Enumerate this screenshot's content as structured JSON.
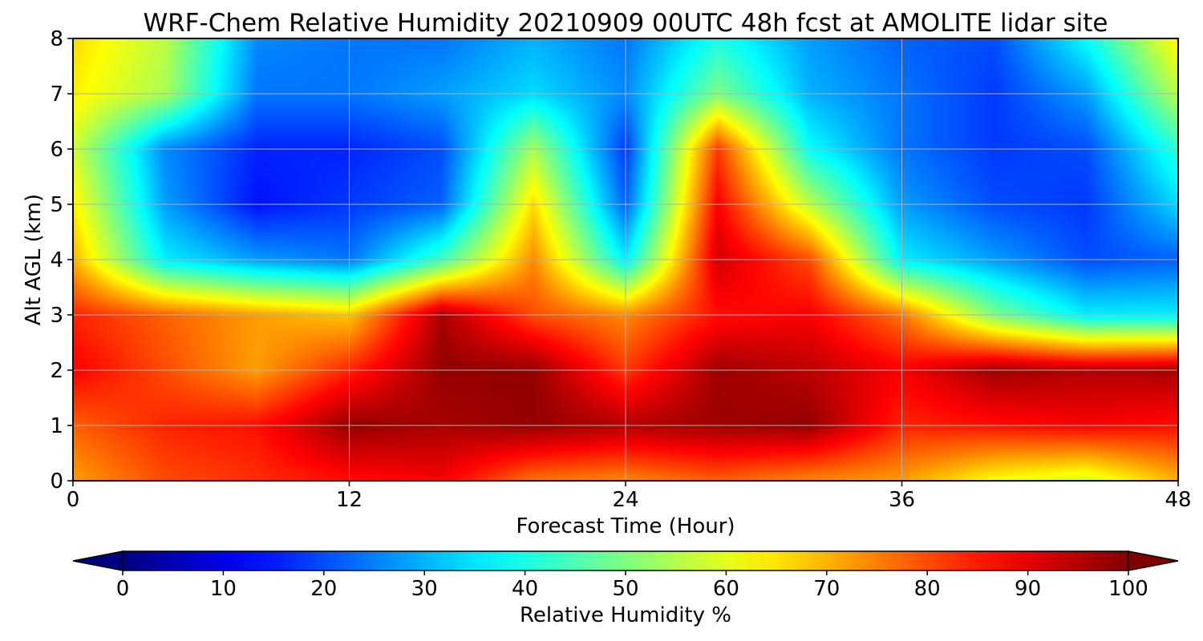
{
  "chart_data": {
    "type": "heatmap",
    "title": "WRF-Chem Relative Humidity 20210909 00UTC 48h fcst at AMOLITE lidar site",
    "xlabel": "Forecast Time (Hour)",
    "ylabel": "Alt AGL (km)",
    "xlim": [
      0,
      48
    ],
    "ylim": [
      0,
      8
    ],
    "x_ticks": [
      0,
      12,
      24,
      36,
      48
    ],
    "y_ticks": [
      0,
      1,
      2,
      3,
      4,
      5,
      6,
      7,
      8
    ],
    "grid": true,
    "x": [
      0,
      4,
      8,
      12,
      16,
      20,
      24,
      28,
      32,
      36,
      40,
      44,
      48
    ],
    "y": [
      0,
      1,
      2,
      3,
      4,
      5,
      6,
      7,
      8
    ],
    "z": [
      [
        72,
        80,
        83,
        86,
        88,
        76,
        74,
        78,
        74,
        72,
        62,
        58,
        70
      ],
      [
        78,
        84,
        86,
        98,
        96,
        98,
        95,
        97,
        98,
        84,
        86,
        88,
        86
      ],
      [
        88,
        80,
        72,
        84,
        98,
        98,
        82,
        97,
        94,
        88,
        97,
        95,
        96
      ],
      [
        84,
        78,
        72,
        68,
        96,
        80,
        74,
        86,
        88,
        76,
        50,
        36,
        36
      ],
      [
        70,
        36,
        28,
        24,
        44,
        74,
        36,
        92,
        80,
        36,
        28,
        20,
        22
      ],
      [
        64,
        28,
        14,
        18,
        22,
        66,
        22,
        88,
        56,
        28,
        20,
        18,
        34
      ],
      [
        58,
        26,
        16,
        16,
        20,
        54,
        18,
        82,
        38,
        24,
        18,
        20,
        42
      ],
      [
        64,
        54,
        24,
        24,
        28,
        34,
        26,
        50,
        30,
        24,
        18,
        28,
        56
      ],
      [
        66,
        56,
        26,
        24,
        24,
        30,
        24,
        40,
        28,
        22,
        20,
        38,
        64
      ]
    ],
    "colorbar": {
      "label": "Relative Humidity %",
      "range": [
        0,
        100
      ],
      "ticks": [
        "0",
        "10",
        "20",
        "30",
        "40",
        "50",
        "60",
        "70",
        "80",
        "90",
        "100"
      ],
      "extend": "both",
      "colormap": "jet"
    }
  }
}
